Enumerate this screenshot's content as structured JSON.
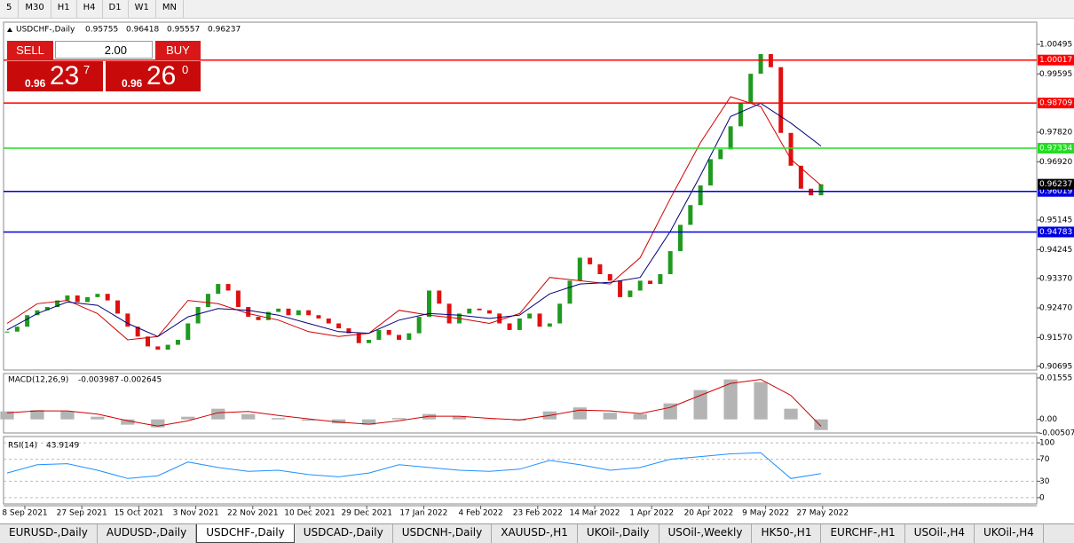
{
  "toolbar": {
    "timeframes": [
      "5",
      "M30",
      "H1",
      "H4",
      "D1",
      "W1",
      "MN"
    ]
  },
  "trade_panel": {
    "sell": "SELL",
    "lot": "2.00",
    "buy": "BUY",
    "bid": {
      "prefix": "0.96",
      "big": "23",
      "sup": "7"
    },
    "ask": {
      "prefix": "0.96",
      "big": "26",
      "sup": "0"
    }
  },
  "chart_data": [
    {
      "type": "candlestick",
      "title": "USDCHF-,Daily",
      "open": 0.95755,
      "high": 0.96418,
      "low": 0.95557,
      "close": 0.96237,
      "up_color": "#1f9a1f",
      "down_color": "#e01010",
      "closes": [
        0.9175,
        0.919,
        0.9225,
        0.924,
        0.925,
        0.927,
        0.9285,
        0.9265,
        0.928,
        0.929,
        0.927,
        0.923,
        0.919,
        0.916,
        0.913,
        0.912,
        0.9135,
        0.915,
        0.92,
        0.925,
        0.929,
        0.932,
        0.93,
        0.925,
        0.922,
        0.921,
        0.9235,
        0.9245,
        0.9225,
        0.924,
        0.9225,
        0.9215,
        0.92,
        0.9185,
        0.917,
        0.914,
        0.915,
        0.918,
        0.9165,
        0.915,
        0.917,
        0.922,
        0.93,
        0.926,
        0.92,
        0.923,
        0.9245,
        0.924,
        0.923,
        0.92,
        0.918,
        0.9215,
        0.923,
        0.919,
        0.92,
        0.926,
        0.933,
        0.94,
        0.938,
        0.935,
        0.933,
        0.928,
        0.93,
        0.933,
        0.932,
        0.935,
        0.942,
        0.95,
        0.956,
        0.962,
        0.97,
        0.973,
        0.98,
        0.987,
        0.996,
        1.002,
        0.998,
        0.978,
        0.968,
        0.961,
        0.959,
        0.96237
      ],
      "moving_averages": [
        {
          "color": "#d00000",
          "values": [
            0.92,
            0.926,
            0.927,
            0.923,
            0.915,
            0.916,
            0.927,
            0.926,
            0.923,
            0.921,
            0.9175,
            0.916,
            0.917,
            0.924,
            0.9225,
            0.9215,
            0.92,
            0.923,
            0.934,
            0.933,
            0.932,
            0.94,
            0.958,
            0.975,
            0.989,
            0.986,
            0.97,
            0.962
          ]
        },
        {
          "color": "#00007a",
          "values": [
            0.918,
            0.923,
            0.9265,
            0.9255,
            0.92,
            0.916,
            0.922,
            0.9245,
            0.924,
            0.9225,
            0.92,
            0.9175,
            0.917,
            0.921,
            0.923,
            0.9225,
            0.9215,
            0.9225,
            0.929,
            0.932,
            0.9325,
            0.934,
            0.948,
            0.965,
            0.983,
            0.987,
            0.981,
            0.974
          ]
        }
      ],
      "levels": [
        {
          "value": 1.00017,
          "color": "#ff0000"
        },
        {
          "value": 0.98709,
          "color": "#ff0000"
        },
        {
          "value": 0.97334,
          "color": "#22dd22"
        },
        {
          "value": 0.96019,
          "color": "#0000e0"
        },
        {
          "value": 0.94783,
          "color": "#0000e0"
        }
      ],
      "ylim": [
        0.90582,
        1.0117
      ],
      "yticks": [
        1.00495,
        0.99595,
        {
          "value": 0.9782,
          "label": "0.97820"
        },
        {
          "value": 0.9692,
          "label": "0.96920"
        },
        0.95145,
        0.94245,
        {
          "value": 0.9337,
          "label": "0.93370"
        },
        {
          "value": 0.9247,
          "label": "0.92470"
        },
        {
          "value": 0.9157,
          "label": "0.91570"
        },
        0.90695
      ],
      "categories": [
        "8 Sep 2021",
        "27 Sep 2021",
        "15 Oct 2021",
        "3 Nov 2021",
        "22 Nov 2021",
        "10 Dec 2021",
        "29 Dec 2021",
        "17 Jan 2022",
        "4 Feb 2022",
        "23 Feb 2022",
        "14 Mar 2022",
        "1 Apr 2022",
        "20 Apr 2022",
        "9 May 2022",
        "27 May 2022"
      ]
    },
    {
      "type": "macd",
      "title": "MACD(12,26,9)",
      "main": -0.003987,
      "signal": -0.002645,
      "bar_color": "#b4b4b4",
      "line_color": "#d00000",
      "histogram": [
        0.003,
        0.0035,
        0.003,
        0.001,
        -0.002,
        -0.003,
        0.001,
        0.004,
        0.002,
        0.0005,
        -0.0005,
        -0.0015,
        -0.002,
        0.0005,
        0.002,
        0.001,
        0.0,
        -0.0005,
        0.003,
        0.0045,
        0.0025,
        0.002,
        0.006,
        0.011,
        0.015,
        0.014,
        0.004,
        -0.004
      ],
      "signal_line": [
        0.0025,
        0.0032,
        0.0032,
        0.002,
        -0.0005,
        -0.0025,
        -0.0005,
        0.0025,
        0.003,
        0.0015,
        0.0002,
        -0.001,
        -0.0018,
        -0.0005,
        0.0012,
        0.0012,
        0.0004,
        -0.0002,
        0.0015,
        0.0035,
        0.0032,
        0.0022,
        0.0045,
        0.009,
        0.0135,
        0.015,
        0.009,
        -0.0026
      ],
      "ylim": [
        -0.0051,
        0.0172
      ],
      "yticks": [
        0.01555,
        {
          "value": 0,
          "label": "0.00"
        },
        -0.005075
      ]
    },
    {
      "type": "line",
      "title": "RSI(14)",
      "current": 43.9149,
      "color": "#1e90ff",
      "values": [
        45,
        60,
        62,
        50,
        35,
        40,
        65,
        55,
        48,
        50,
        42,
        38,
        45,
        60,
        55,
        50,
        48,
        52,
        68,
        60,
        50,
        55,
        70,
        75,
        80,
        82,
        35,
        44
      ],
      "ylim": [
        -11.5,
        111.5
      ],
      "yticks": [
        100,
        70,
        30,
        0
      ]
    }
  ],
  "tabs": [
    "EURUSD-,Daily",
    "AUDUSD-,Daily",
    "USDCHF-,Daily",
    "USDCAD-,Daily",
    "USDCNH-,Daily",
    "XAUUSD-,H1",
    "UKOil-,Daily",
    "USOil-,Weekly",
    "HK50-,H1",
    "EURCHF-,H1",
    "USOil-,H4",
    "UKOil-,H4"
  ],
  "active_tab": "USDCHF-,Daily"
}
